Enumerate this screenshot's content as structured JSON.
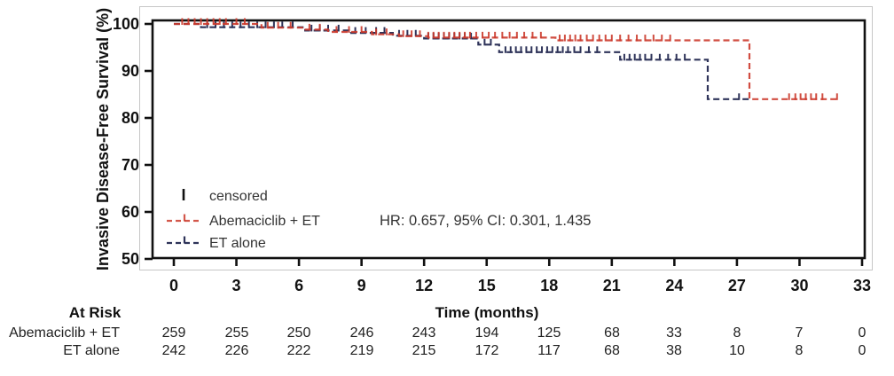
{
  "chart_data": {
    "type": "line",
    "subtype": "kaplan-meier-step",
    "title": "",
    "ylabel": "Invasive Disease-Free Survival (%)",
    "xlabel": "Time (months)",
    "xlim": [
      0,
      33
    ],
    "ylim": [
      50,
      100
    ],
    "xticks": [
      0,
      3,
      6,
      9,
      12,
      15,
      18,
      21,
      24,
      27,
      30,
      33
    ],
    "yticks": [
      100,
      90,
      80,
      70,
      60,
      50
    ],
    "grid": false,
    "annotation": "HR: 0.657, 95% CI: 0.301, 1.435",
    "legend": {
      "position": "inside-lower-left",
      "censored_label": "censored",
      "censored_color": "#111111"
    },
    "series": [
      {
        "name": "ET alone",
        "color": "#2e3359",
        "style": "dashed",
        "start_value": 100,
        "steps": [
          [
            1.3,
            99.3
          ],
          [
            6.3,
            98.6
          ],
          [
            8.4,
            98.1
          ],
          [
            10.5,
            97.5
          ],
          [
            12.0,
            96.9
          ],
          [
            14.6,
            95.6
          ],
          [
            15.6,
            94.0
          ],
          [
            21.4,
            92.4
          ],
          [
            25.6,
            84.0
          ]
        ],
        "end_time": 27.6,
        "censor_times": [
          1.6,
          2.0,
          2.4,
          2.8,
          3.2,
          3.6,
          4.0,
          4.4,
          4.8,
          5.2,
          5.7,
          6.6,
          7.0,
          7.4,
          7.9,
          8.7,
          9.2,
          9.7,
          10.1,
          10.8,
          11.2,
          11.6,
          12.2,
          12.45,
          12.7,
          12.95,
          13.2,
          13.45,
          13.7,
          13.95,
          14.25,
          14.9,
          15.2,
          15.9,
          16.15,
          16.4,
          16.65,
          16.9,
          17.15,
          17.4,
          17.65,
          17.9,
          18.15,
          18.4,
          18.65,
          18.9,
          19.2,
          19.5,
          19.9,
          20.3,
          21.6,
          21.85,
          22.1,
          22.35,
          22.6,
          22.9,
          23.3,
          23.7,
          24.1,
          24.5,
          27.1
        ]
      },
      {
        "name": "Abemaciclib + ET",
        "color": "#cc3a2c",
        "style": "dashed",
        "start_value": 100,
        "steps": [
          [
            4.2,
            99.2
          ],
          [
            6.2,
            98.8
          ],
          [
            7.4,
            98.3
          ],
          [
            9.5,
            97.8
          ],
          [
            10.8,
            97.4
          ],
          [
            12.2,
            97.1
          ],
          [
            18.3,
            96.5
          ],
          [
            27.6,
            84.0
          ]
        ],
        "end_time": 31.9,
        "censor_times": [
          0.4,
          0.7,
          1.0,
          1.3,
          1.6,
          1.9,
          2.2,
          2.5,
          3.0,
          3.4,
          4.5,
          5.0,
          5.6,
          6.5,
          7.0,
          7.8,
          8.4,
          9.0,
          9.7,
          10.2,
          11.0,
          11.4,
          11.8,
          12.2,
          12.45,
          12.7,
          12.95,
          13.2,
          13.45,
          13.7,
          13.95,
          14.2,
          14.5,
          14.8,
          15.1,
          15.4,
          15.75,
          16.1,
          16.45,
          16.8,
          17.2,
          17.6,
          18.5,
          18.75,
          19.0,
          19.25,
          19.5,
          19.8,
          20.1,
          20.4,
          20.7,
          21.0,
          21.4,
          21.8,
          22.2,
          22.6,
          23.0,
          23.4,
          23.8,
          29.5,
          29.8,
          30.05,
          30.3,
          30.55,
          30.8,
          31.1,
          31.8
        ]
      }
    ],
    "at_risk": {
      "header": "At Risk",
      "times": [
        0,
        3,
        6,
        9,
        12,
        15,
        18,
        21,
        24,
        27,
        30,
        33
      ],
      "rows": [
        {
          "name": "Abemaciclib + ET",
          "counts": [
            259,
            255,
            250,
            246,
            243,
            194,
            125,
            68,
            33,
            8,
            7,
            0
          ]
        },
        {
          "name": "ET alone",
          "counts": [
            242,
            226,
            222,
            219,
            215,
            172,
            117,
            68,
            38,
            10,
            8,
            0
          ]
        }
      ]
    }
  }
}
